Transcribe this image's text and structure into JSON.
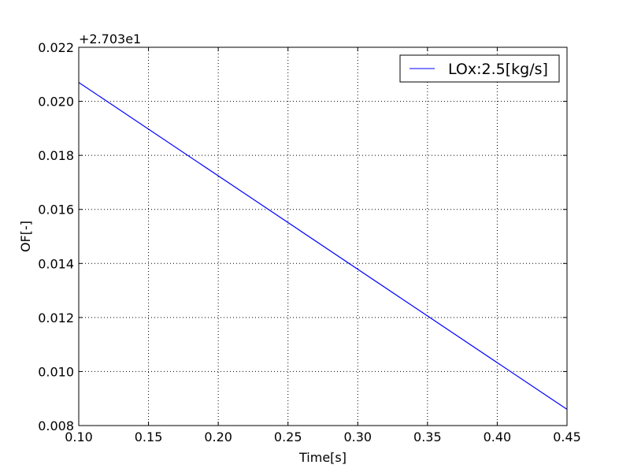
{
  "chart_data": {
    "type": "line",
    "title": "",
    "xlabel": "Time[s]",
    "ylabel": "OF[-]",
    "y_offset_label": "+2.703e1",
    "y_offset": 27.03,
    "xlim": [
      0.1,
      0.45
    ],
    "ylim": [
      0.008,
      0.022
    ],
    "x_ticks": [
      0.1,
      0.15,
      0.2,
      0.25,
      0.3,
      0.35,
      0.4,
      0.45
    ],
    "x_tick_labels": [
      "0.10",
      "0.15",
      "0.20",
      "0.25",
      "0.30",
      "0.35",
      "0.40",
      "0.45"
    ],
    "y_ticks": [
      0.008,
      0.01,
      0.012,
      0.014,
      0.016,
      0.018,
      0.02,
      0.022
    ],
    "y_tick_labels": [
      "0.008",
      "0.010",
      "0.012",
      "0.014",
      "0.016",
      "0.018",
      "0.020",
      "0.022"
    ],
    "grid": true,
    "legend_position": "top-right",
    "series": [
      {
        "name": "LOx:2.5[kg/s]",
        "color": "#0000ff",
        "x": [
          0.1,
          0.45
        ],
        "y": [
          0.0207,
          0.0086
        ]
      }
    ]
  }
}
